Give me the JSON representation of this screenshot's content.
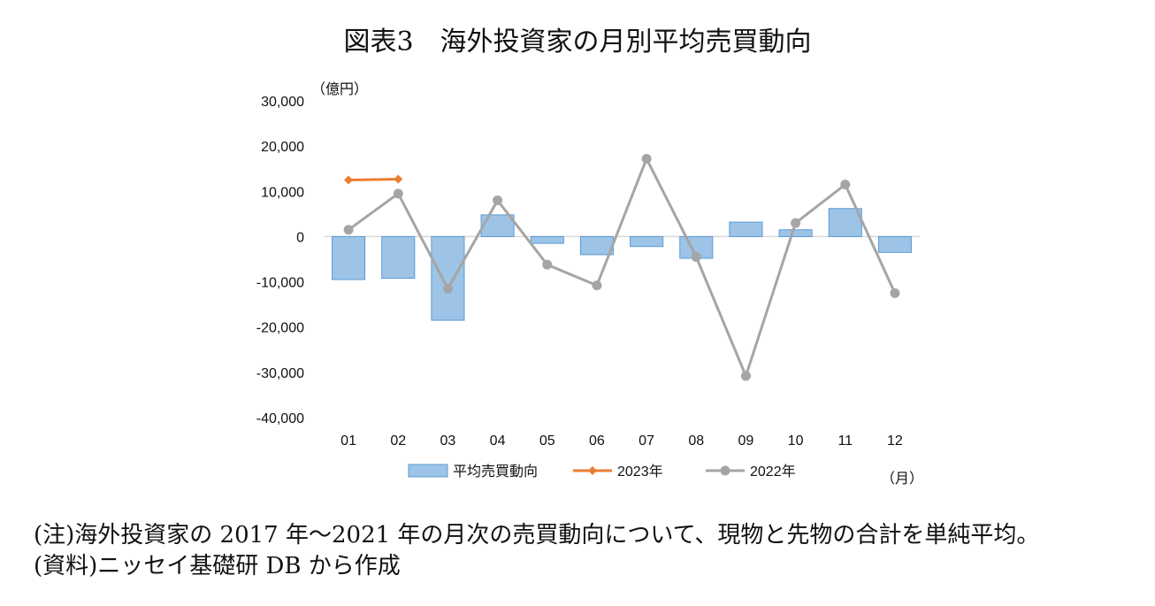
{
  "title": "図表3　海外投資家の月別平均売買動向",
  "chart_data": {
    "type": "bar",
    "categories": [
      "01",
      "02",
      "03",
      "04",
      "05",
      "06",
      "07",
      "08",
      "09",
      "10",
      "11",
      "12"
    ],
    "y_unit": "（億円）",
    "x_unit": "（月）",
    "ylim": [
      -40000,
      30000
    ],
    "y_ticks": [
      30000,
      20000,
      10000,
      0,
      -10000,
      -20000,
      -30000,
      -40000
    ],
    "y_tick_labels": [
      "30,000",
      "20,000",
      "10,000",
      "0",
      "-10,000",
      "-20,000",
      "-30,000",
      "-40,000"
    ],
    "grid": false,
    "legend_position": "bottom",
    "series": [
      {
        "name": "平均売買動向",
        "type": "bar",
        "color": "#9dc3e6",
        "values": [
          -9500,
          -9200,
          -18500,
          4800,
          -1500,
          -4000,
          -2200,
          -4800,
          3200,
          1500,
          6200,
          -3500
        ]
      },
      {
        "name": "2023年",
        "type": "line",
        "color": "#ed7d31",
        "marker": "diamond",
        "values": [
          12500,
          12700,
          null,
          null,
          null,
          null,
          null,
          null,
          null,
          null,
          null,
          null
        ]
      },
      {
        "name": "2022年",
        "type": "line",
        "color": "#a5a5a5",
        "marker": "circle",
        "values": [
          1500,
          9500,
          -11500,
          8000,
          -6200,
          -10800,
          17200,
          -4500,
          -30800,
          3000,
          11500,
          -12500
        ]
      }
    ]
  },
  "notes": [
    "(注)海外投資家の 2017 年～2021 年の月次の売買動向について、現物と先物の合計を単純平均。",
    "(資料)ニッセイ基礎研 DB から作成"
  ]
}
